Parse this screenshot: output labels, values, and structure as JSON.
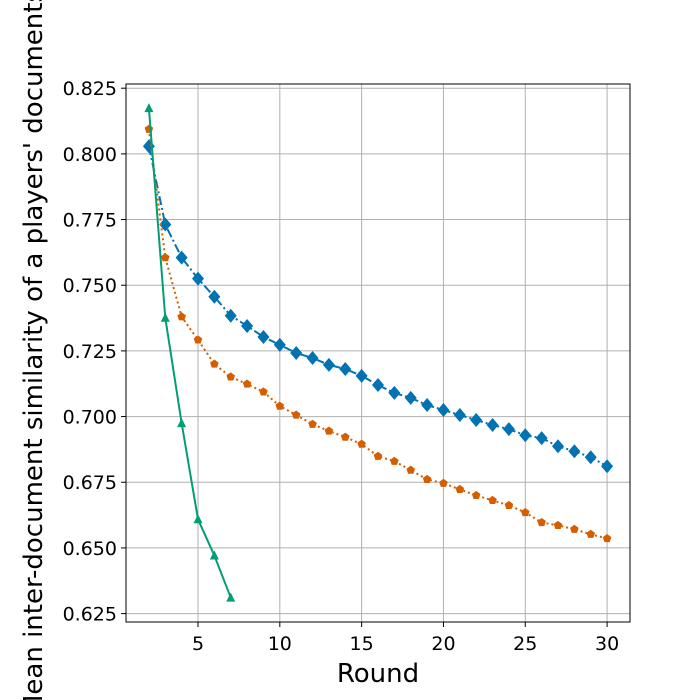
{
  "chart_data": {
    "type": "line",
    "x_label": "Round",
    "y_label": "Mean inter-document similarity of a players' documents",
    "xlim": [
      0.6,
      31.4
    ],
    "ylim": [
      0.6218,
      0.8266
    ],
    "xticks": [
      5,
      10,
      15,
      20,
      25,
      30
    ],
    "yticks": [
      {
        "value": 0.625,
        "label": "0.625"
      },
      {
        "value": 0.65,
        "label": "0.650"
      },
      0.675,
      {
        "value": 0.7,
        "label": "0.700"
      },
      0.725,
      {
        "value": 0.75,
        "label": "0.750"
      },
      0.775,
      {
        "value": 0.8,
        "label": "0.800"
      },
      0.825
    ],
    "grid": true,
    "series": [
      {
        "color": "#0173b2",
        "marker": "diamond",
        "linestyle": "dashdot",
        "x": [
          2,
          3,
          4,
          5,
          6,
          7,
          8,
          9,
          10,
          11,
          12,
          13,
          14,
          15,
          16,
          17,
          18,
          19,
          20,
          21,
          22,
          23,
          24,
          25,
          26,
          27,
          28,
          29,
          30
        ],
        "values": [
          0.8029,
          0.7731,
          0.7605,
          0.7525,
          0.7456,
          0.7384,
          0.7345,
          0.7303,
          0.7273,
          0.7242,
          0.7223,
          0.7197,
          0.7181,
          0.7155,
          0.712,
          0.709,
          0.7071,
          0.7044,
          0.7025,
          0.7006,
          0.6987,
          0.6968,
          0.6952,
          0.6929,
          0.6918,
          0.6887,
          0.6868,
          0.6845,
          0.6811
        ]
      },
      {
        "color": "#d55e00",
        "marker": "pentagon",
        "linestyle": "dotted",
        "x": [
          2,
          3,
          4,
          5,
          6,
          7,
          8,
          9,
          10,
          11,
          12,
          13,
          14,
          15,
          16,
          17,
          18,
          19,
          20,
          21,
          22,
          23,
          24,
          25,
          26,
          27,
          28,
          29,
          30
        ],
        "values": [
          0.8094,
          0.7605,
          0.738,
          0.7292,
          0.72,
          0.7151,
          0.7124,
          0.7094,
          0.704,
          0.7006,
          0.6971,
          0.6945,
          0.6922,
          0.6895,
          0.6849,
          0.683,
          0.6796,
          0.6761,
          0.6746,
          0.6723,
          0.67,
          0.6681,
          0.6662,
          0.6635,
          0.6597,
          0.6586,
          0.6571,
          0.6552,
          0.6536
        ]
      },
      {
        "color": "#029e73",
        "marker": "triangle",
        "linestyle": "solid",
        "x": [
          2,
          3,
          4,
          5,
          6,
          7
        ],
        "values": [
          0.8174,
          0.7376,
          0.6975,
          0.6609,
          0.6471,
          0.6311
        ]
      }
    ]
  }
}
